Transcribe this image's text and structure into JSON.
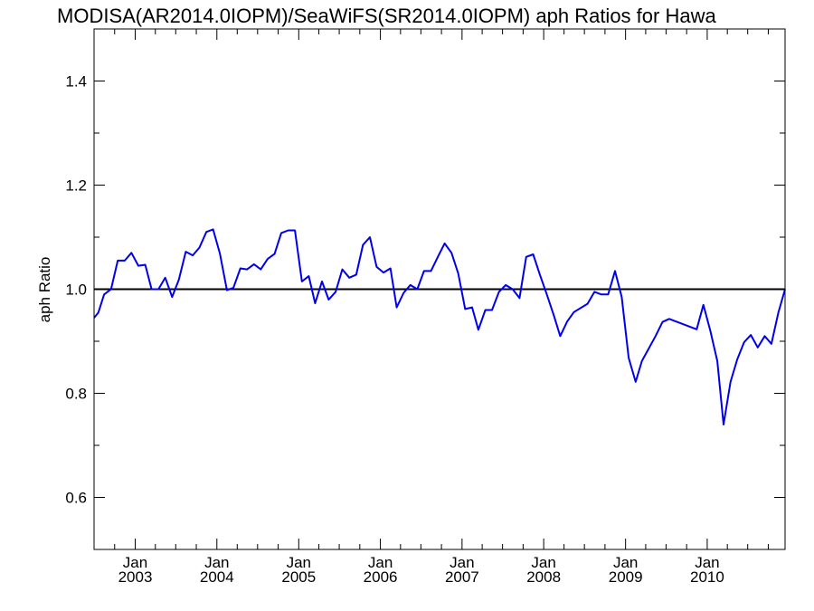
{
  "chart_data": {
    "type": "line",
    "title": "MODISA(AR2014.0IOPM)/SeaWiFS(SR2014.0IOPM)  aph Ratios for Hawa",
    "ylabel": "aph Ratio",
    "xlabel": "",
    "ylim": [
      0.5,
      1.5
    ],
    "xlim": [
      "2002-07-01",
      "2010-12-15"
    ],
    "y_ticks": [
      0.6,
      0.8,
      1.0,
      1.2,
      1.4
    ],
    "y_tick_labels": [
      "0.6",
      "0.8",
      "1.0",
      "1.2",
      "1.4"
    ],
    "x_ticks": [
      {
        "date": "2003-01-01",
        "month": "Jan",
        "year": "2003"
      },
      {
        "date": "2004-01-01",
        "month": "Jan",
        "year": "2004"
      },
      {
        "date": "2005-01-01",
        "month": "Jan",
        "year": "2005"
      },
      {
        "date": "2006-01-01",
        "month": "Jan",
        "year": "2006"
      },
      {
        "date": "2007-01-01",
        "month": "Jan",
        "year": "2007"
      },
      {
        "date": "2008-01-01",
        "month": "Jan",
        "year": "2008"
      },
      {
        "date": "2009-01-01",
        "month": "Jan",
        "year": "2009"
      },
      {
        "date": "2010-01-01",
        "month": "Jan",
        "year": "2010"
      }
    ],
    "reference_line": {
      "y": 1.0,
      "color": "#000000"
    },
    "series": [
      {
        "color": "#0000ee",
        "points": [
          [
            "2002-07-01",
            0.945
          ],
          [
            "2002-07-20",
            0.955
          ],
          [
            "2002-08-15",
            0.99
          ],
          [
            "2002-09-15",
            1.0
          ],
          [
            "2002-10-15",
            1.055
          ],
          [
            "2002-11-15",
            1.055
          ],
          [
            "2002-12-15",
            1.07
          ],
          [
            "2003-01-15",
            1.045
          ],
          [
            "2003-02-15",
            1.047
          ],
          [
            "2003-03-15",
            1.0
          ],
          [
            "2003-04-15",
            1.0
          ],
          [
            "2003-05-15",
            1.022
          ],
          [
            "2003-06-15",
            0.985
          ],
          [
            "2003-07-15",
            1.018
          ],
          [
            "2003-08-15",
            1.072
          ],
          [
            "2003-09-15",
            1.065
          ],
          [
            "2003-10-15",
            1.08
          ],
          [
            "2003-11-15",
            1.11
          ],
          [
            "2003-12-15",
            1.115
          ],
          [
            "2004-01-15",
            1.068
          ],
          [
            "2004-02-15",
            0.998
          ],
          [
            "2004-03-15",
            1.003
          ],
          [
            "2004-04-15",
            1.04
          ],
          [
            "2004-05-15",
            1.038
          ],
          [
            "2004-06-15",
            1.048
          ],
          [
            "2004-07-15",
            1.038
          ],
          [
            "2004-08-15",
            1.058
          ],
          [
            "2004-09-15",
            1.068
          ],
          [
            "2004-10-15",
            1.108
          ],
          [
            "2004-11-15",
            1.113
          ],
          [
            "2004-12-15",
            1.113
          ],
          [
            "2005-01-15",
            1.015
          ],
          [
            "2005-02-15",
            1.025
          ],
          [
            "2005-03-15",
            0.973
          ],
          [
            "2005-04-15",
            1.015
          ],
          [
            "2005-05-15",
            0.98
          ],
          [
            "2005-06-15",
            0.995
          ],
          [
            "2005-07-15",
            1.038
          ],
          [
            "2005-08-15",
            1.022
          ],
          [
            "2005-09-15",
            1.028
          ],
          [
            "2005-10-15",
            1.085
          ],
          [
            "2005-11-15",
            1.1
          ],
          [
            "2005-12-15",
            1.043
          ],
          [
            "2006-01-15",
            1.032
          ],
          [
            "2006-02-15",
            1.04
          ],
          [
            "2006-03-15",
            0.965
          ],
          [
            "2006-04-15",
            0.993
          ],
          [
            "2006-05-15",
            1.008
          ],
          [
            "2006-06-15",
            1.0
          ],
          [
            "2006-07-15",
            1.035
          ],
          [
            "2006-08-15",
            1.035
          ],
          [
            "2006-09-15",
            1.062
          ],
          [
            "2006-10-15",
            1.088
          ],
          [
            "2006-11-15",
            1.07
          ],
          [
            "2006-12-15",
            1.03
          ],
          [
            "2007-01-15",
            0.962
          ],
          [
            "2007-02-15",
            0.965
          ],
          [
            "2007-03-15",
            0.922
          ],
          [
            "2007-04-15",
            0.96
          ],
          [
            "2007-05-15",
            0.96
          ],
          [
            "2007-06-15",
            0.995
          ],
          [
            "2007-07-15",
            1.008
          ],
          [
            "2007-08-15",
            1.0
          ],
          [
            "2007-09-15",
            0.983
          ],
          [
            "2007-10-15",
            1.062
          ],
          [
            "2007-11-15",
            1.067
          ],
          [
            "2007-12-15",
            1.028
          ],
          [
            "2008-01-15",
            0.99
          ],
          [
            "2008-02-15",
            0.95
          ],
          [
            "2008-03-15",
            0.91
          ],
          [
            "2008-04-15",
            0.938
          ],
          [
            "2008-05-15",
            0.956
          ],
          [
            "2008-07-15",
            0.972
          ],
          [
            "2008-08-15",
            0.995
          ],
          [
            "2008-09-15",
            0.99
          ],
          [
            "2008-10-15",
            0.99
          ],
          [
            "2008-11-15",
            1.035
          ],
          [
            "2008-12-15",
            0.985
          ],
          [
            "2009-01-15",
            0.868
          ],
          [
            "2009-02-15",
            0.822
          ],
          [
            "2009-03-15",
            0.862
          ],
          [
            "2009-05-15",
            0.91
          ],
          [
            "2009-06-15",
            0.937
          ],
          [
            "2009-07-15",
            0.943
          ],
          [
            "2009-11-15",
            0.923
          ],
          [
            "2009-12-15",
            0.97
          ],
          [
            "2010-01-15",
            0.92
          ],
          [
            "2010-02-15",
            0.862
          ],
          [
            "2010-03-15",
            0.74
          ],
          [
            "2010-04-15",
            0.822
          ],
          [
            "2010-05-15",
            0.865
          ],
          [
            "2010-06-15",
            0.898
          ],
          [
            "2010-07-15",
            0.912
          ],
          [
            "2010-08-15",
            0.888
          ],
          [
            "2010-09-15",
            0.91
          ],
          [
            "2010-10-15",
            0.895
          ],
          [
            "2010-11-15",
            0.955
          ],
          [
            "2010-12-15",
            1.0
          ]
        ]
      }
    ],
    "grid": false,
    "legend": "none"
  }
}
